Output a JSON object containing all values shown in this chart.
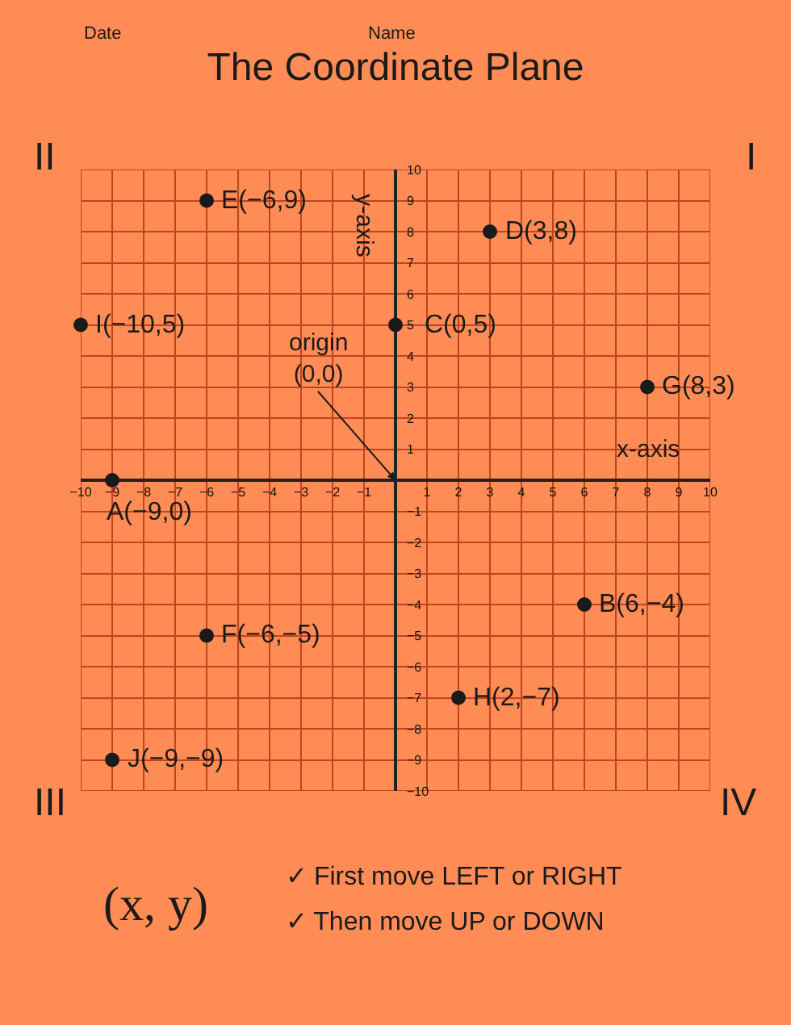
{
  "chart_data": {
    "type": "scatter",
    "title": "The Coordinate Plane",
    "xlabel": "x-axis",
    "ylabel": "y-axis",
    "x": [
      -6,
      3,
      0,
      -10,
      8,
      -9,
      6,
      -6,
      2,
      -9
    ],
    "series": [
      {
        "color": "#1a1a1a",
        "values": [
          9,
          8,
          5,
          5,
          3,
          0,
          -4,
          -5,
          -7,
          -9
        ]
      }
    ],
    "xlim": [
      -10,
      10
    ],
    "ylim": [
      -10,
      10
    ],
    "xticks": [
      -10,
      -9,
      -8,
      -7,
      -6,
      -5,
      -4,
      -3,
      -2,
      -1,
      1,
      2,
      3,
      4,
      5,
      6,
      7,
      8,
      9,
      10
    ],
    "yticks": [
      -10,
      -9,
      -8,
      -7,
      -6,
      -5,
      -4,
      -3,
      -2,
      -1,
      1,
      2,
      3,
      4,
      5,
      6,
      7,
      8,
      9,
      10
    ],
    "grid": true,
    "marker": "circle",
    "annotations": [
      "Date",
      "Name",
      "II",
      "I",
      "III",
      "IV",
      "origin\n(0,0)",
      "(x, y)",
      "✓ First move LEFT or RIGHT",
      "✓ Then move UP or DOWN",
      {
        "text": "E(−6,9)",
        "x": -6,
        "y": 9
      },
      {
        "text": "D(3,8)",
        "x": 3,
        "y": 8
      },
      {
        "text": "C(0,5)",
        "x": 0,
        "y": 5
      },
      {
        "text": "I(−10,5)",
        "x": -10,
        "y": 5
      },
      {
        "text": "G(8,3)",
        "x": 8,
        "y": 3
      },
      {
        "text": "A(−9,0)",
        "x": -9,
        "y": 0
      },
      {
        "text": "B(6,−4)",
        "x": 6,
        "y": -4
      },
      {
        "text": "F(−6,−5)",
        "x": -6,
        "y": -5
      },
      {
        "text": "H(2,−7)",
        "x": 2,
        "y": -7
      },
      {
        "text": "J(−9,−9)",
        "x": -9,
        "y": -9
      }
    ]
  }
}
